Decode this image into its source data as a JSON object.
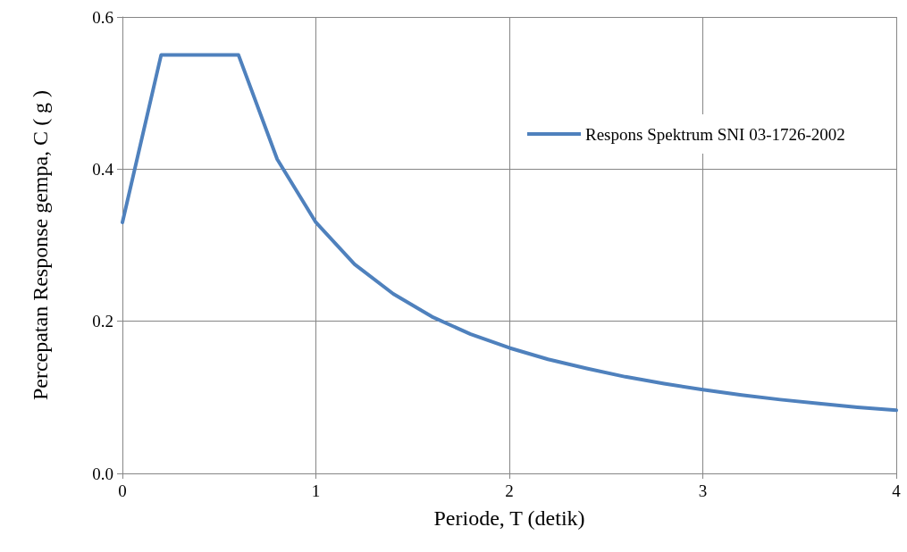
{
  "chart_data": {
    "type": "line",
    "xlabel": "Periode, T (detik)",
    "ylabel": "Percepatan Response gempa, C ( g )",
    "x": [
      0,
      0.2,
      0.6,
      0.8,
      1.0,
      1.2,
      1.4,
      1.6,
      1.8,
      2.0,
      2.2,
      2.4,
      2.6,
      2.8,
      3.0,
      3.2,
      3.4,
      3.6,
      3.8,
      4.0
    ],
    "series": [
      {
        "name": "Respons Spektrum SNI 03-1726-2002",
        "color": "#4f81bd",
        "values": [
          0.33,
          0.55,
          0.55,
          0.413,
          0.33,
          0.275,
          0.236,
          0.206,
          0.183,
          0.165,
          0.15,
          0.138,
          0.127,
          0.118,
          0.11,
          0.103,
          0.097,
          0.092,
          0.087,
          0.083
        ]
      }
    ],
    "xlim": [
      0,
      4
    ],
    "xticks": [
      0,
      1,
      2,
      3,
      4
    ],
    "ylim": [
      0,
      0.6
    ],
    "yticks": [
      {
        "value": 0,
        "label": "0.0"
      },
      {
        "value": 0.2,
        "label": "0.2"
      },
      {
        "value": 0.4,
        "label": "0.4"
      },
      {
        "value": 0.6,
        "label": "0.6"
      }
    ],
    "grid": true,
    "legend": "top right",
    "marker": "none",
    "line_style": "solid"
  }
}
